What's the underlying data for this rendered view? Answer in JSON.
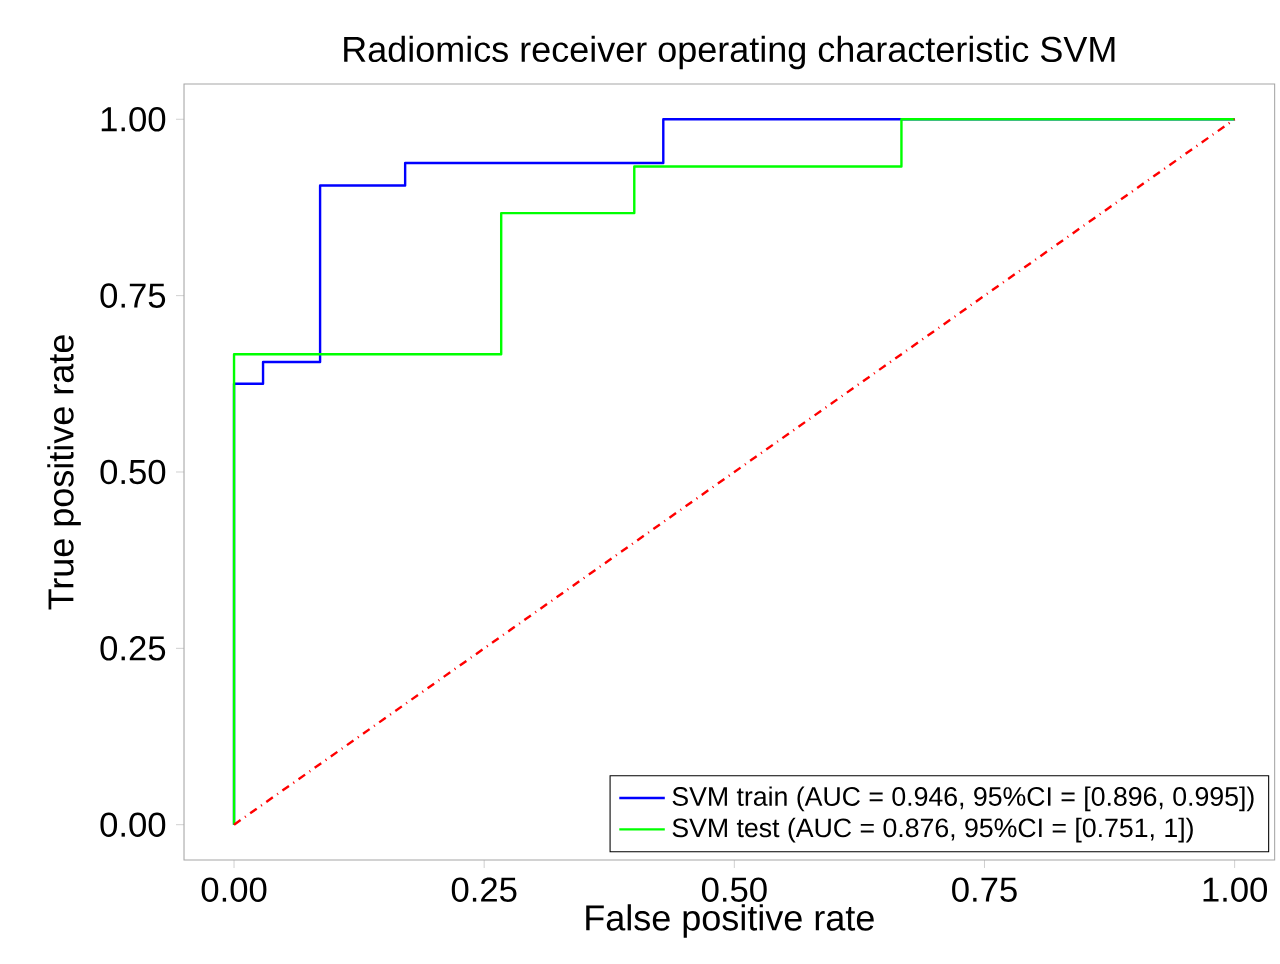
{
  "chart_data": {
    "type": "line",
    "title": "Radiomics receiver operating characteristic SVM",
    "xlabel": "False positive rate",
    "ylabel": "True positive rate",
    "xlim": [
      -0.05,
      1.04
    ],
    "ylim": [
      -0.05,
      1.05
    ],
    "xticks": [
      {
        "value": 0,
        "label": "0.00"
      },
      {
        "value": 0.25,
        "label": "0.25"
      },
      {
        "value": 0.5,
        "label": "0.50"
      },
      {
        "value": 0.75,
        "label": "0.75"
      },
      {
        "value": 1,
        "label": "1.00"
      }
    ],
    "yticks": [
      {
        "value": 0,
        "label": "0.00"
      },
      {
        "value": 0.25,
        "label": "0.25"
      },
      {
        "value": 0.5,
        "label": "0.50"
      },
      {
        "value": 0.75,
        "label": "0.75"
      },
      {
        "value": 1,
        "label": "1.00"
      }
    ],
    "series": [
      {
        "name": "SVM train (AUC = 0.946, 95%CI = [0.896, 0.995])",
        "color": "#0000ff",
        "x": [
          0,
          0,
          0.029,
          0.029,
          0.086,
          0.086,
          0.171,
          0.171,
          0.429,
          0.429,
          1
        ],
        "values": [
          0,
          0.625,
          0.625,
          0.656,
          0.656,
          0.906,
          0.906,
          0.938,
          0.938,
          1,
          1
        ]
      },
      {
        "name": "SVM test (AUC = 0.876, 95%CI = [0.751, 1])",
        "color": "#00ff00",
        "x": [
          0,
          0,
          0.267,
          0.267,
          0.4,
          0.4,
          0.667,
          0.667,
          1
        ],
        "values": [
          0,
          0.667,
          0.667,
          0.867,
          0.867,
          0.933,
          0.933,
          1,
          1
        ]
      },
      {
        "color": "#ff0000",
        "line_style": "dashdot",
        "x": [
          0,
          1
        ],
        "values": [
          0,
          1
        ]
      }
    ],
    "legend": "bottom right",
    "grid": false
  }
}
